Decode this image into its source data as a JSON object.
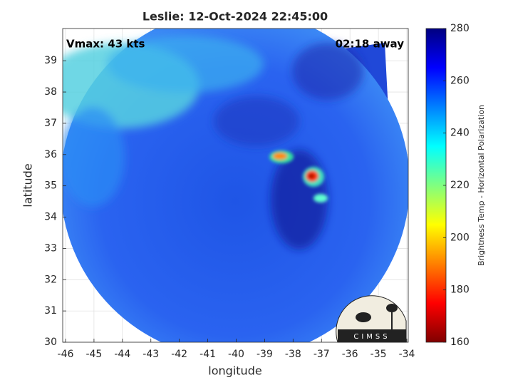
{
  "chart_data": {
    "type": "image",
    "title": "Leslie: 12-Oct-2024 22:45:00",
    "xlabel": "longitude",
    "ylabel": "latitude",
    "xlim": [
      -46.1,
      -33.95
    ],
    "ylim": [
      30,
      40.03
    ],
    "xticks": [
      -46,
      -45,
      -44,
      -43,
      -42,
      -41,
      -40,
      -39,
      -38,
      -37,
      -36,
      -35,
      -34
    ],
    "yticks": [
      30,
      31,
      32,
      33,
      34,
      35,
      36,
      37,
      38,
      39
    ],
    "grid": true,
    "annotations": [
      "Vmax: 43 kts",
      "02:18 away"
    ],
    "logo_text": "CIMSS",
    "colorbar": {
      "label": "Brightness Temp - Horizontal Polarization",
      "clim": [
        160,
        280
      ],
      "ticks": [
        160,
        180,
        200,
        220,
        240,
        260,
        280
      ],
      "colors": [
        "#800000",
        "#ff0000",
        "#ff8000",
        "#ffff00",
        "#80ff80",
        "#00ffff",
        "#0080ff",
        "#0000ff",
        "#000080"
      ]
    }
  }
}
